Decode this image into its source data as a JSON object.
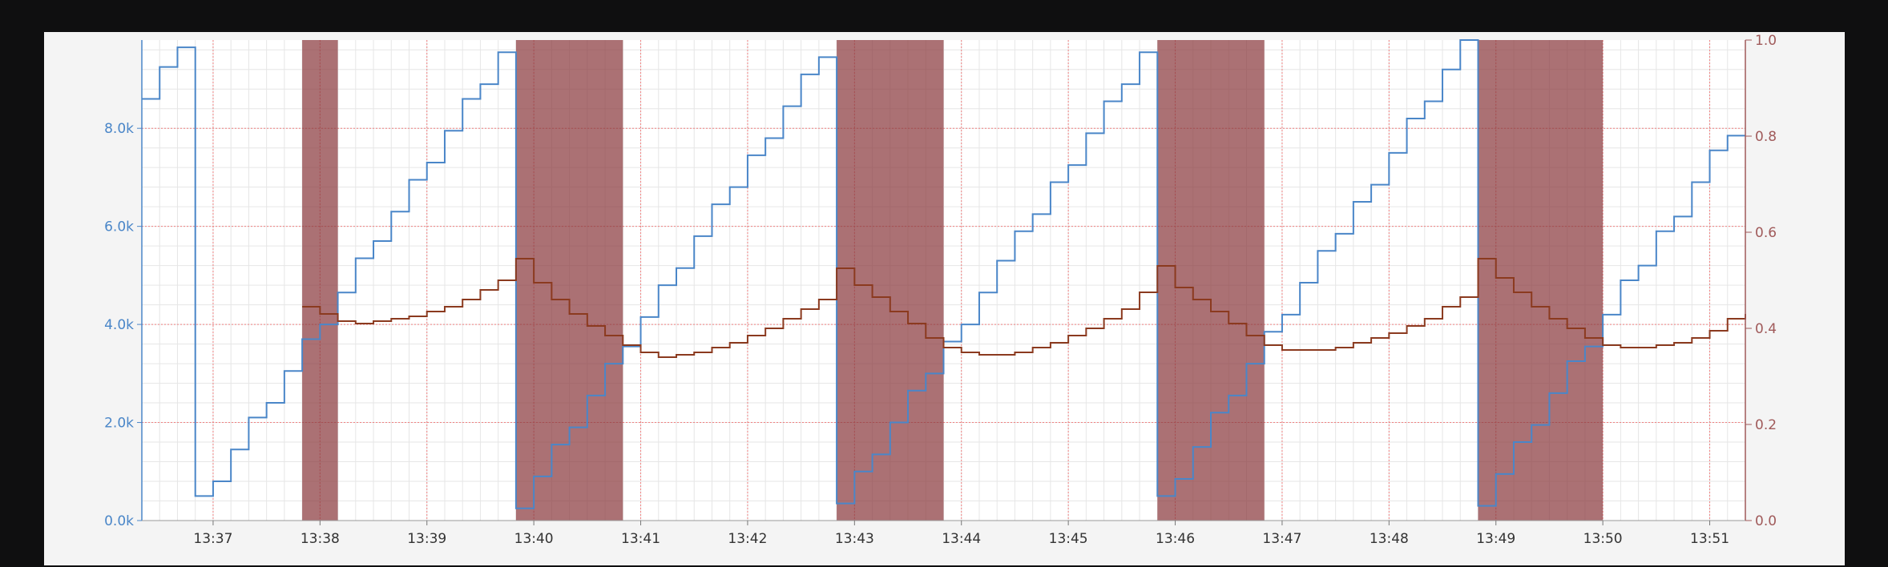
{
  "colors": {
    "panel_bg": "#f4f4f4",
    "plot_bg": "#ffffff",
    "minor_grid": "#e6e6e6",
    "major_grid": "#f08080",
    "left_axis": "#4a86c8",
    "right_axis": "#a05a5a",
    "shade": "#8b3a3f"
  },
  "chart_data": {
    "type": "line",
    "title": "",
    "x_range": [
      "13:36:20",
      "13:51:20"
    ],
    "x_ticks": [
      "13:37",
      "13:38",
      "13:39",
      "13:40",
      "13:41",
      "13:42",
      "13:43",
      "13:44",
      "13:45",
      "13:46",
      "13:47",
      "13:48",
      "13:49",
      "13:50",
      "13:51"
    ],
    "y_left": {
      "ylim": [
        0,
        9800
      ],
      "ticks": [
        "0.0k",
        "2.0k",
        "4.0k",
        "6.0k",
        "8.0k"
      ],
      "tick_values": [
        0,
        2000,
        4000,
        6000,
        8000
      ]
    },
    "y_right": {
      "ylim": [
        0,
        1
      ],
      "ticks": [
        "0.0",
        "0.2",
        "0.4",
        "0.6",
        "0.8",
        "1.0"
      ],
      "tick_values": [
        0,
        0.2,
        0.4,
        0.6,
        0.8,
        1.0
      ]
    },
    "grid": true,
    "shaded_intervals": [
      [
        "13:37:50",
        "13:38:10"
      ],
      [
        "13:39:50",
        "13:40:50"
      ],
      [
        "13:42:50",
        "13:43:50"
      ],
      [
        "13:45:50",
        "13:46:50"
      ],
      [
        "13:48:50",
        "13:50:00"
      ]
    ],
    "series": [
      {
        "axis": "left",
        "color": "#4a86c8",
        "step": true,
        "points": [
          [
            "13:36:20",
            8600
          ],
          [
            "13:36:30",
            9250
          ],
          [
            "13:36:40",
            9650
          ],
          [
            "13:36:50",
            500
          ],
          [
            "13:37:00",
            800
          ],
          [
            "13:37:10",
            1450
          ],
          [
            "13:37:20",
            2100
          ],
          [
            "13:37:30",
            2400
          ],
          [
            "13:37:40",
            3050
          ],
          [
            "13:37:50",
            3700
          ],
          [
            "13:38:00",
            4000
          ],
          [
            "13:38:10",
            4650
          ],
          [
            "13:38:20",
            5350
          ],
          [
            "13:38:30",
            5700
          ],
          [
            "13:38:40",
            6300
          ],
          [
            "13:38:50",
            6950
          ],
          [
            "13:39:00",
            7300
          ],
          [
            "13:39:10",
            7950
          ],
          [
            "13:39:20",
            8600
          ],
          [
            "13:39:30",
            8900
          ],
          [
            "13:39:40",
            9550
          ],
          [
            "13:39:50",
            250
          ],
          [
            "13:40:00",
            900
          ],
          [
            "13:40:10",
            1550
          ],
          [
            "13:40:20",
            1900
          ],
          [
            "13:40:30",
            2550
          ],
          [
            "13:40:40",
            3200
          ],
          [
            "13:40:50",
            3550
          ],
          [
            "13:41:00",
            4150
          ],
          [
            "13:41:10",
            4800
          ],
          [
            "13:41:20",
            5150
          ],
          [
            "13:41:30",
            5800
          ],
          [
            "13:41:40",
            6450
          ],
          [
            "13:41:50",
            6800
          ],
          [
            "13:42:00",
            7450
          ],
          [
            "13:42:10",
            7800
          ],
          [
            "13:42:20",
            8450
          ],
          [
            "13:42:30",
            9100
          ],
          [
            "13:42:40",
            9450
          ],
          [
            "13:42:50",
            350
          ],
          [
            "13:43:00",
            1000
          ],
          [
            "13:43:10",
            1350
          ],
          [
            "13:43:20",
            2000
          ],
          [
            "13:43:30",
            2650
          ],
          [
            "13:43:40",
            3000
          ],
          [
            "13:43:50",
            3650
          ],
          [
            "13:44:00",
            4000
          ],
          [
            "13:44:10",
            4650
          ],
          [
            "13:44:20",
            5300
          ],
          [
            "13:44:30",
            5900
          ],
          [
            "13:44:40",
            6250
          ],
          [
            "13:44:50",
            6900
          ],
          [
            "13:45:00",
            7250
          ],
          [
            "13:45:10",
            7900
          ],
          [
            "13:45:20",
            8550
          ],
          [
            "13:45:30",
            8900
          ],
          [
            "13:45:40",
            9550
          ],
          [
            "13:45:50",
            500
          ],
          [
            "13:46:00",
            850
          ],
          [
            "13:46:10",
            1500
          ],
          [
            "13:46:20",
            2200
          ],
          [
            "13:46:30",
            2550
          ],
          [
            "13:46:40",
            3200
          ],
          [
            "13:46:50",
            3850
          ],
          [
            "13:47:00",
            4200
          ],
          [
            "13:47:10",
            4850
          ],
          [
            "13:47:20",
            5500
          ],
          [
            "13:47:30",
            5850
          ],
          [
            "13:47:40",
            6500
          ],
          [
            "13:47:50",
            6850
          ],
          [
            "13:48:00",
            7500
          ],
          [
            "13:48:10",
            8200
          ],
          [
            "13:48:20",
            8550
          ],
          [
            "13:48:30",
            9200
          ],
          [
            "13:48:40",
            9800
          ],
          [
            "13:48:50",
            300
          ],
          [
            "13:49:00",
            950
          ],
          [
            "13:49:10",
            1600
          ],
          [
            "13:49:20",
            1950
          ],
          [
            "13:49:30",
            2600
          ],
          [
            "13:49:40",
            3250
          ],
          [
            "13:49:50",
            3550
          ],
          [
            "13:50:00",
            4200
          ],
          [
            "13:50:10",
            4900
          ],
          [
            "13:50:20",
            5200
          ],
          [
            "13:50:30",
            5900
          ],
          [
            "13:50:40",
            6200
          ],
          [
            "13:50:50",
            6900
          ],
          [
            "13:51:00",
            7550
          ],
          [
            "13:51:10",
            7850
          ],
          [
            "13:51:20",
            7850
          ]
        ]
      },
      {
        "axis": "right",
        "color": "#8b3a1f",
        "step": true,
        "points": [
          [
            "13:37:50",
            0.445
          ],
          [
            "13:38:00",
            0.43
          ],
          [
            "13:38:10",
            0.415
          ],
          [
            "13:38:20",
            0.41
          ],
          [
            "13:38:30",
            0.415
          ],
          [
            "13:38:40",
            0.42
          ],
          [
            "13:38:50",
            0.425
          ],
          [
            "13:39:00",
            0.435
          ],
          [
            "13:39:10",
            0.445
          ],
          [
            "13:39:20",
            0.46
          ],
          [
            "13:39:30",
            0.48
          ],
          [
            "13:39:40",
            0.5
          ],
          [
            "13:39:50",
            0.545
          ],
          [
            "13:40:00",
            0.495
          ],
          [
            "13:40:10",
            0.46
          ],
          [
            "13:40:20",
            0.43
          ],
          [
            "13:40:30",
            0.405
          ],
          [
            "13:40:40",
            0.385
          ],
          [
            "13:40:50",
            0.365
          ],
          [
            "13:41:00",
            0.35
          ],
          [
            "13:41:10",
            0.34
          ],
          [
            "13:41:20",
            0.345
          ],
          [
            "13:41:30",
            0.35
          ],
          [
            "13:41:40",
            0.36
          ],
          [
            "13:41:50",
            0.37
          ],
          [
            "13:42:00",
            0.385
          ],
          [
            "13:42:10",
            0.4
          ],
          [
            "13:42:20",
            0.42
          ],
          [
            "13:42:30",
            0.44
          ],
          [
            "13:42:40",
            0.46
          ],
          [
            "13:42:50",
            0.525
          ],
          [
            "13:43:00",
            0.49
          ],
          [
            "13:43:10",
            0.465
          ],
          [
            "13:43:20",
            0.435
          ],
          [
            "13:43:30",
            0.41
          ],
          [
            "13:43:40",
            0.38
          ],
          [
            "13:43:50",
            0.36
          ],
          [
            "13:44:00",
            0.35
          ],
          [
            "13:44:10",
            0.345
          ],
          [
            "13:44:20",
            0.345
          ],
          [
            "13:44:30",
            0.35
          ],
          [
            "13:44:40",
            0.36
          ],
          [
            "13:44:50",
            0.37
          ],
          [
            "13:45:00",
            0.385
          ],
          [
            "13:45:10",
            0.4
          ],
          [
            "13:45:20",
            0.42
          ],
          [
            "13:45:30",
            0.44
          ],
          [
            "13:45:40",
            0.475
          ],
          [
            "13:45:50",
            0.53
          ],
          [
            "13:46:00",
            0.485
          ],
          [
            "13:46:10",
            0.46
          ],
          [
            "13:46:20",
            0.435
          ],
          [
            "13:46:30",
            0.41
          ],
          [
            "13:46:40",
            0.385
          ],
          [
            "13:46:50",
            0.365
          ],
          [
            "13:47:00",
            0.355
          ],
          [
            "13:47:10",
            0.355
          ],
          [
            "13:47:20",
            0.355
          ],
          [
            "13:47:30",
            0.36
          ],
          [
            "13:47:40",
            0.37
          ],
          [
            "13:47:50",
            0.38
          ],
          [
            "13:48:00",
            0.39
          ],
          [
            "13:48:10",
            0.405
          ],
          [
            "13:48:20",
            0.42
          ],
          [
            "13:48:30",
            0.445
          ],
          [
            "13:48:40",
            0.465
          ],
          [
            "13:48:50",
            0.545
          ],
          [
            "13:49:00",
            0.505
          ],
          [
            "13:49:10",
            0.475
          ],
          [
            "13:49:20",
            0.445
          ],
          [
            "13:49:30",
            0.42
          ],
          [
            "13:49:40",
            0.4
          ],
          [
            "13:49:50",
            0.38
          ],
          [
            "13:50:00",
            0.365
          ],
          [
            "13:50:10",
            0.36
          ],
          [
            "13:50:20",
            0.36
          ],
          [
            "13:50:30",
            0.365
          ],
          [
            "13:50:40",
            0.37
          ],
          [
            "13:50:50",
            0.38
          ],
          [
            "13:51:00",
            0.395
          ],
          [
            "13:51:10",
            0.42
          ],
          [
            "13:51:20",
            0.43
          ]
        ]
      }
    ]
  }
}
